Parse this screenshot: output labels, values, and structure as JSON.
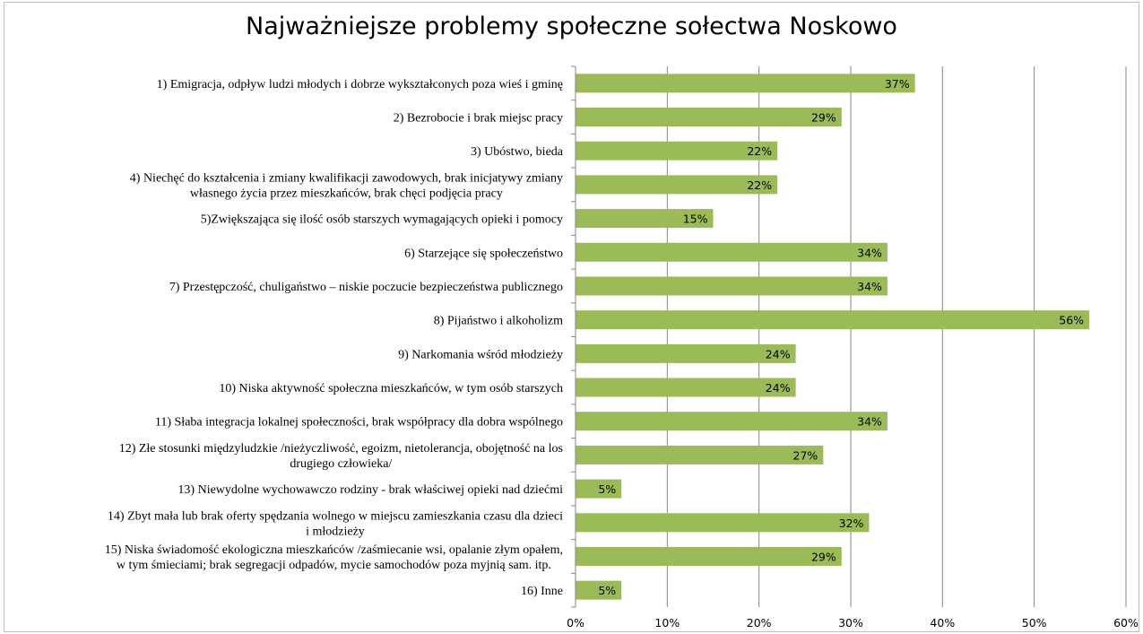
{
  "chart_data": {
    "type": "bar",
    "orientation": "horizontal",
    "title": "Najważniejsze problemy społeczne sołectwa Noskowo",
    "categories": [
      [
        "1) Emigracja, odpływ ludzi młodych i dobrze wykształconych poza wieś i gminę"
      ],
      [
        "2) Bezrobocie i brak miejsc pracy"
      ],
      [
        "3) Ubóstwo, bieda"
      ],
      [
        "4) Niechęć do kształcenia i zmiany kwalifikacji zawodowych, brak inicjatywy zmiany",
        "własnego życia przez mieszkańców, brak chęci podjęcia pracy"
      ],
      [
        "5)Zwiększająca się ilość osób starszych wymagających opieki i pomocy"
      ],
      [
        "6) Starzejące się społeczeństwo"
      ],
      [
        "7) Przestępczość, chuligaństwo – niskie poczucie bezpieczeństwa publicznego"
      ],
      [
        "8) Pijaństwo i alkoholizm"
      ],
      [
        "9) Narkomania wśród młodzieży"
      ],
      [
        "10) Niska aktywność społeczna mieszkańców, w tym osób starszych"
      ],
      [
        "11) Słaba integracja lokalnej społeczności, brak współpracy dla dobra wspólnego"
      ],
      [
        "12) Złe stosunki międzyludzkie /nieżyczliwość, egoizm, nietolerancja, obojętność na los",
        "drugiego człowieka/"
      ],
      [
        "13) Niewydolne wychowawczo rodziny  - brak właściwej opieki nad dziećmi"
      ],
      [
        "14) Zbyt mała lub brak oferty spędzania wolnego  w miejscu zamieszkania czasu dla dzieci",
        "i młodzieży"
      ],
      [
        "15) Niska świadomość ekologiczna mieszkańców /zaśmiecanie wsi, opalanie złym opałem,",
        "w tym śmieciami; brak segregacji odpadów, mycie samochodów poza myjnią sam.  itp."
      ],
      [
        "16) Inne"
      ]
    ],
    "values": [
      37,
      29,
      22,
      22,
      15,
      34,
      34,
      56,
      24,
      24,
      34,
      27,
      5,
      32,
      29,
      5
    ],
    "value_labels": [
      "37%",
      "29%",
      "22%",
      "22%",
      "15%",
      "34%",
      "34%",
      "56%",
      "24%",
      "24%",
      "34%",
      "27%",
      "5%",
      "32%",
      "29%",
      "5%"
    ],
    "xlim": [
      0,
      60
    ],
    "xticks": [
      0,
      10,
      20,
      30,
      40,
      50,
      60
    ],
    "xtick_labels": [
      "0%",
      "10%",
      "20%",
      "30%",
      "40%",
      "50%",
      "60%"
    ],
    "xlabel": "",
    "ylabel": "",
    "grid": "vertical",
    "legend": "none",
    "bar_color": "#9bbb59",
    "grid_color": "#868686"
  }
}
